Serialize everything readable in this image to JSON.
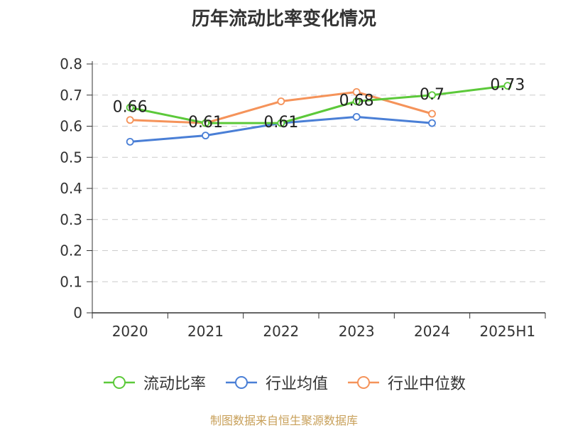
{
  "title": "历年流动比率变化情况",
  "source": "制图数据来自恒生聚源数据库",
  "chart_data": {
    "type": "line",
    "categories": [
      "2020",
      "2021",
      "2022",
      "2023",
      "2024",
      "2025H1"
    ],
    "ylim": [
      0,
      0.8
    ],
    "yticks": [
      "0",
      "0.1",
      "0.2",
      "0.3",
      "0.4",
      "0.5",
      "0.6",
      "0.7",
      "0.8"
    ],
    "grid": true,
    "legend": "bottom",
    "series": [
      {
        "name": "流动比率",
        "color": "#5cc93a",
        "values": [
          0.66,
          0.61,
          0.61,
          0.68,
          0.7,
          0.73
        ],
        "labels": [
          "0.66",
          "0.61",
          "0.61",
          "0.68",
          "0.7",
          "0.73"
        ]
      },
      {
        "name": "行业均值",
        "color": "#4a7fd6",
        "values": [
          0.55,
          0.57,
          0.61,
          0.63,
          0.61,
          null
        ]
      },
      {
        "name": "行业中位数",
        "color": "#f5935a",
        "values": [
          0.62,
          0.61,
          0.68,
          0.71,
          0.64,
          null
        ]
      }
    ]
  }
}
